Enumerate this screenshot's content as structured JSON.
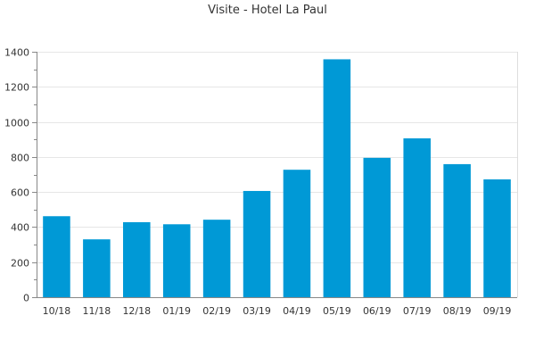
{
  "chart_data": {
    "type": "bar",
    "title": "Visite - Hotel La Paul",
    "xlabel": "",
    "ylabel": "",
    "categories": [
      "10/18",
      "11/18",
      "12/18",
      "01/19",
      "02/19",
      "03/19",
      "04/19",
      "05/19",
      "06/19",
      "07/19",
      "08/19",
      "09/19"
    ],
    "values": [
      462,
      330,
      428,
      416,
      442,
      606,
      727,
      1357,
      795,
      906,
      759,
      672
    ],
    "ylim": [
      0,
      1400
    ],
    "yticks": [
      0,
      200,
      400,
      600,
      800,
      1000,
      1200,
      1400
    ],
    "grid": true,
    "legend": "none",
    "bar_color": "#0099d6",
    "grid_color": "#e6e6e6",
    "axis_color": "#888888"
  }
}
